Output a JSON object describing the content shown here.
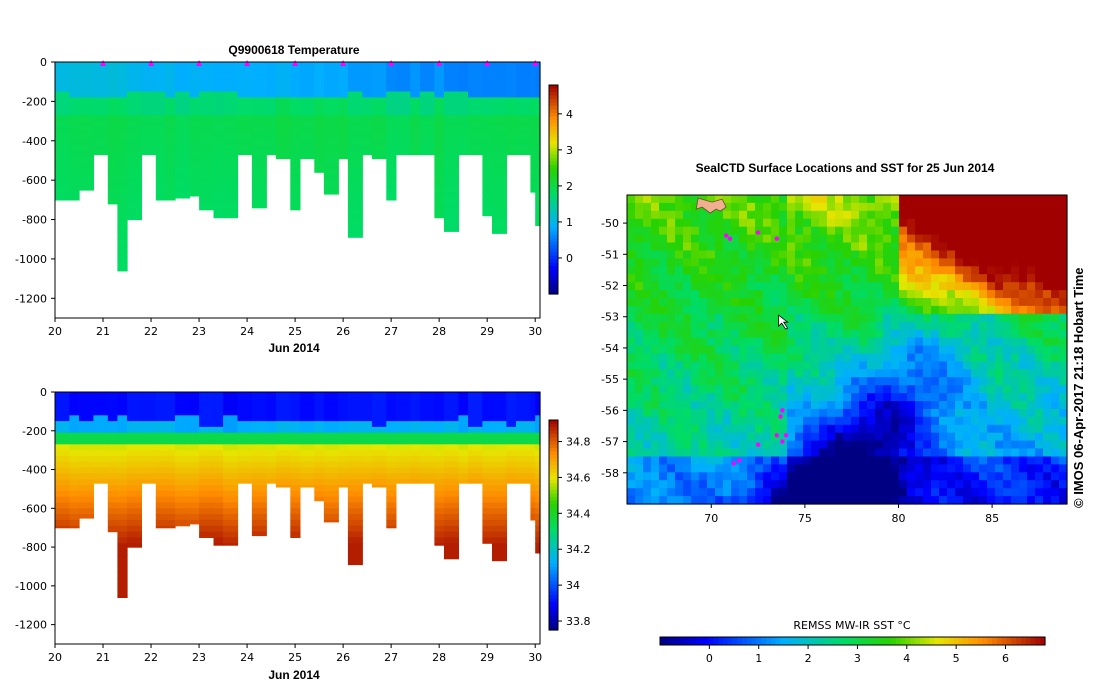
{
  "panels": {
    "temperature": {
      "title": "Q9900618  Temperature",
      "xlabel": "Jun 2014",
      "x_ticks": [
        "20",
        "21",
        "22",
        "23",
        "24",
        "25",
        "26",
        "27",
        "28",
        "29",
        "30"
      ],
      "y_ticks": [
        "0",
        "-200",
        "-400",
        "-600",
        "-800",
        "-1000",
        "-1200"
      ],
      "colorbar_ticks": [
        "4",
        "3",
        "2",
        "1",
        "0"
      ],
      "colorbar_range": [
        -1,
        4.8
      ]
    },
    "salinity": {
      "title": "",
      "xlabel": "Jun 2014",
      "x_ticks": [
        "20",
        "21",
        "22",
        "23",
        "24",
        "25",
        "26",
        "27",
        "28",
        "29",
        "30"
      ],
      "y_ticks": [
        "0",
        "-200",
        "-400",
        "-600",
        "-800",
        "-1000",
        "-1200"
      ],
      "colorbar_ticks": [
        "34.8",
        "34.6",
        "34.4",
        "34.2",
        "34",
        "33.8"
      ],
      "colorbar_range": [
        33.75,
        34.92
      ]
    },
    "map": {
      "title": "SealCTD Surface Locations and SST for 25 Jun 2014",
      "x_ticks": [
        "70",
        "75",
        "80",
        "85"
      ],
      "y_ticks": [
        "-50",
        "-51",
        "-52",
        "-53",
        "-54",
        "-55",
        "-56",
        "-57",
        "-58"
      ],
      "side_text": "© IMOS 06-Apr-2017 21:18 Hobart Time",
      "colorbar_label": "REMSS MW-IR SST °C",
      "colorbar_ticks": [
        "0",
        "1",
        "2",
        "3",
        "4",
        "5",
        "6"
      ],
      "colorbar_range": [
        -1,
        6.8
      ]
    }
  },
  "chart_data": [
    {
      "type": "heatmap",
      "title": "Q9900618  Temperature",
      "xlabel": "Jun 2014",
      "ylabel": "",
      "xlim": [
        20,
        30.1
      ],
      "ylim": [
        -1300,
        0
      ],
      "x_ticks": [
        20,
        21,
        22,
        23,
        24,
        25,
        26,
        27,
        28,
        29,
        30
      ],
      "y_ticks": [
        0,
        -200,
        -400,
        -600,
        -800,
        -1000,
        -1200
      ],
      "profile_days": [
        20,
        20.3,
        20.5,
        20.8,
        21.1,
        21.3,
        21.5,
        21.8,
        22.1,
        22.3,
        22.5,
        22.8,
        23.0,
        23.3,
        23.5,
        23.8,
        24.1,
        24.4,
        24.6,
        24.9,
        25.1,
        25.4,
        25.6,
        25.9,
        26.1,
        26.4,
        26.6,
        26.9,
        27.1,
        27.4,
        27.6,
        27.9,
        28.1,
        28.4,
        28.6,
        28.9,
        29.1,
        29.4,
        29.6,
        29.9,
        30.0
      ],
      "max_depths": [
        -700,
        -700,
        -650,
        -470,
        -720,
        -1060,
        -800,
        -470,
        -700,
        -700,
        -690,
        -680,
        -750,
        -790,
        -790,
        -470,
        -740,
        -470,
        -490,
        -750,
        -490,
        -560,
        -670,
        -490,
        -890,
        -470,
        -490,
        -700,
        -470,
        -470,
        -470,
        -790,
        -860,
        -470,
        -470,
        -780,
        -870,
        -470,
        -470,
        -660,
        -830
      ],
      "surface_marker_days": [
        21,
        22,
        23,
        24,
        25,
        26,
        27,
        28,
        29,
        30
      ],
      "colorbar_ticks": [
        4,
        3,
        2,
        1,
        0
      ],
      "colorbar_range": [
        -1,
        4.8
      ]
    },
    {
      "type": "heatmap",
      "title": "",
      "xlabel": "Jun 2014",
      "ylabel": "",
      "xlim": [
        20,
        30.1
      ],
      "ylim": [
        -1300,
        0
      ],
      "x_ticks": [
        20,
        21,
        22,
        23,
        24,
        25,
        26,
        27,
        28,
        29,
        30
      ],
      "y_ticks": [
        0,
        -200,
        -400,
        -600,
        -800,
        -1000,
        -1200
      ],
      "profile_days": [
        20,
        20.3,
        20.5,
        20.8,
        21.1,
        21.3,
        21.5,
        21.8,
        22.1,
        22.3,
        22.5,
        22.8,
        23.0,
        23.3,
        23.5,
        23.8,
        24.1,
        24.4,
        24.6,
        24.9,
        25.1,
        25.4,
        25.6,
        25.9,
        26.1,
        26.4,
        26.6,
        26.9,
        27.1,
        27.4,
        27.6,
        27.9,
        28.1,
        28.4,
        28.6,
        28.9,
        29.1,
        29.4,
        29.6,
        29.9,
        30.0
      ],
      "max_depths": [
        -700,
        -700,
        -650,
        -470,
        -720,
        -1060,
        -800,
        -470,
        -700,
        -700,
        -690,
        -680,
        -750,
        -790,
        -790,
        -470,
        -740,
        -470,
        -490,
        -750,
        -490,
        -560,
        -670,
        -490,
        -890,
        -470,
        -490,
        -700,
        -470,
        -470,
        -470,
        -790,
        -860,
        -470,
        -470,
        -780,
        -870,
        -470,
        -470,
        -660,
        -830
      ],
      "colorbar_ticks": [
        34.8,
        34.6,
        34.4,
        34.2,
        34,
        33.8
      ],
      "colorbar_range": [
        33.75,
        34.92
      ]
    },
    {
      "type": "heatmap",
      "title": "SealCTD Surface Locations and SST for 25 Jun 2014",
      "xlabel": "",
      "ylabel": "",
      "xlim": [
        65.5,
        89
      ],
      "ylim": [
        -59,
        -49.1
      ],
      "x_ticks": [
        70,
        75,
        80,
        85
      ],
      "y_ticks": [
        -50,
        -51,
        -52,
        -53,
        -54,
        -55,
        -56,
        -57,
        -58
      ],
      "colorbar_label": "REMSS MW-IR SST °C",
      "colorbar_ticks": [
        0,
        1,
        2,
        3,
        4,
        5,
        6
      ],
      "colorbar_range": [
        -1,
        6.8
      ],
      "seal_locations": [
        [
          70.8,
          -50.4
        ],
        [
          71.0,
          -50.5
        ],
        [
          72.5,
          -50.3
        ],
        [
          73.5,
          -50.5
        ],
        [
          73.8,
          -56.0
        ],
        [
          73.7,
          -56.2
        ],
        [
          74.0,
          -56.8
        ],
        [
          73.5,
          -56.8
        ],
        [
          73.8,
          -57.0
        ],
        [
          72.5,
          -57.1
        ],
        [
          71.5,
          -57.6
        ],
        [
          71.2,
          -57.7
        ]
      ]
    }
  ]
}
